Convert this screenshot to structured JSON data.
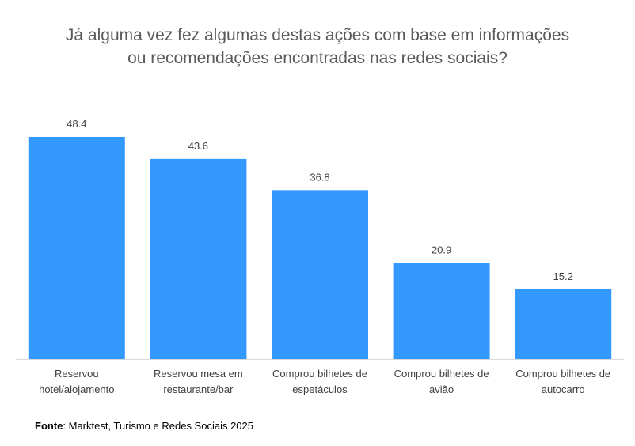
{
  "chart_data": {
    "type": "bar",
    "title_lines": [
      "Já alguma vez fez algumas destas ações com base em informações",
      "ou recomendações encontradas nas redes sociais?"
    ],
    "categories": [
      [
        "Reservou",
        "hotel/alojamento"
      ],
      [
        "Reservou mesa em",
        "restaurante/bar"
      ],
      [
        "Comprou bilhetes de",
        "espetáculos"
      ],
      [
        "Comprou bilhetes de",
        "avião"
      ],
      [
        "Comprou bilhetes de",
        "autocarro"
      ]
    ],
    "values": [
      48.4,
      43.6,
      36.8,
      20.9,
      15.2
    ],
    "value_labels": [
      "48.4",
      "43.6",
      "36.8",
      "20.9",
      "15.2"
    ],
    "ylim": [
      0,
      48.4
    ],
    "xlabel": "",
    "ylabel": "",
    "grid": false,
    "legend": "none",
    "bar_color": "#3399FF",
    "axis_color": "#D9D9D9"
  },
  "source": {
    "label": "Fonte",
    "text": ": Marktest, Turismo e Redes Sociais 2025"
  }
}
